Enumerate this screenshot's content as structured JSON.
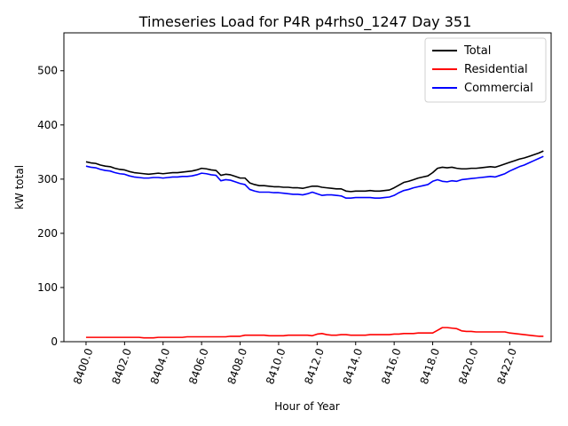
{
  "chart_data": {
    "type": "line",
    "title": "Timeseries Load for P4R p4rhs0_1247  Day 351",
    "xlabel": "Hour of Year",
    "ylabel": "kW total",
    "xlim": [
      8398.85,
      8424.15
    ],
    "ylim": [
      0,
      570
    ],
    "xticks": [
      8400,
      8402,
      8404,
      8406,
      8408,
      8410,
      8412,
      8414,
      8416,
      8418,
      8420,
      8422
    ],
    "xtick_labels": [
      "8400.0",
      "8402.0",
      "8404.0",
      "8406.0",
      "8408.0",
      "8410.0",
      "8412.0",
      "8414.0",
      "8416.0",
      "8418.0",
      "8420.0",
      "8422.0"
    ],
    "yticks": [
      0,
      100,
      200,
      300,
      400,
      500
    ],
    "ytick_labels": [
      "0",
      "100",
      "200",
      "300",
      "400",
      "500"
    ],
    "grid": false,
    "legend_position": "top-right",
    "x": [
      8400.0,
      8400.25,
      8400.5,
      8400.75,
      8401.0,
      8401.25,
      8401.5,
      8401.75,
      8402.0,
      8402.25,
      8402.5,
      8402.75,
      8403.0,
      8403.25,
      8403.5,
      8403.75,
      8404.0,
      8404.25,
      8404.5,
      8404.75,
      8405.0,
      8405.25,
      8405.5,
      8405.75,
      8406.0,
      8406.25,
      8406.5,
      8406.75,
      8407.0,
      8407.25,
      8407.5,
      8407.75,
      8408.0,
      8408.25,
      8408.5,
      8408.75,
      8409.0,
      8409.25,
      8409.5,
      8409.75,
      8410.0,
      8410.25,
      8410.5,
      8410.75,
      8411.0,
      8411.25,
      8411.5,
      8411.75,
      8412.0,
      8412.25,
      8412.5,
      8412.75,
      8413.0,
      8413.25,
      8413.5,
      8413.75,
      8414.0,
      8414.25,
      8414.5,
      8414.75,
      8415.0,
      8415.25,
      8415.5,
      8415.75,
      8416.0,
      8416.25,
      8416.5,
      8416.75,
      8417.0,
      8417.25,
      8417.5,
      8417.75,
      8418.0,
      8418.25,
      8418.5,
      8418.75,
      8419.0,
      8419.25,
      8419.5,
      8419.75,
      8420.0,
      8420.25,
      8420.5,
      8420.75,
      8421.0,
      8421.25,
      8421.5,
      8421.75,
      8422.0,
      8422.25,
      8422.5,
      8422.75,
      8423.0,
      8423.25,
      8423.5,
      8423.75
    ],
    "series": [
      {
        "name": "Total",
        "color": "#000000",
        "values": [
          332,
          330,
          329,
          326,
          324,
          323,
          320,
          318,
          317,
          314,
          312,
          311,
          310,
          309,
          310,
          311,
          310,
          311,
          312,
          312,
          313,
          314,
          315,
          317,
          320,
          319,
          317,
          316,
          307,
          309,
          308,
          305,
          302,
          302,
          293,
          290,
          288,
          288,
          287,
          286,
          286,
          285,
          285,
          284,
          284,
          283,
          285,
          287,
          287,
          285,
          284,
          283,
          282,
          282,
          278,
          277,
          278,
          278,
          278,
          279,
          278,
          278,
          279,
          280,
          284,
          289,
          294,
          296,
          299,
          302,
          304,
          306,
          312,
          320,
          322,
          321,
          322,
          320,
          319,
          319,
          320,
          320,
          321,
          322,
          323,
          322,
          325,
          328,
          331,
          334,
          337,
          339,
          342,
          345,
          348,
          352
        ]
      },
      {
        "name": "Residential",
        "color": "#ff0000",
        "values": [
          8,
          8,
          8,
          8,
          8,
          8,
          8,
          8,
          8,
          8,
          8,
          8,
          7,
          7,
          7,
          8,
          8,
          8,
          8,
          8,
          8,
          9,
          9,
          9,
          9,
          9,
          9,
          9,
          9,
          9,
          10,
          10,
          10,
          12,
          12,
          12,
          12,
          12,
          11,
          11,
          11,
          11,
          12,
          12,
          12,
          12,
          12,
          11,
          14,
          15,
          13,
          12,
          12,
          13,
          13,
          12,
          12,
          12,
          12,
          13,
          13,
          13,
          13,
          13,
          14,
          14,
          15,
          15,
          15,
          16,
          16,
          16,
          16,
          21,
          26,
          26,
          25,
          24,
          20,
          19,
          19,
          18,
          18,
          18,
          18,
          18,
          18,
          18,
          16,
          15,
          14,
          13,
          12,
          11,
          10,
          10
        ]
      },
      {
        "name": "Commercial",
        "color": "#0000ff",
        "values": [
          324,
          322,
          321,
          318,
          316,
          315,
          312,
          310,
          309,
          306,
          304,
          303,
          302,
          302,
          303,
          303,
          302,
          303,
          304,
          304,
          305,
          305,
          306,
          308,
          311,
          310,
          308,
          307,
          297,
          299,
          298,
          295,
          292,
          290,
          281,
          278,
          276,
          276,
          276,
          275,
          275,
          274,
          273,
          272,
          272,
          271,
          273,
          276,
          273,
          270,
          271,
          271,
          270,
          269,
          265,
          265,
          266,
          266,
          266,
          266,
          265,
          265,
          266,
          267,
          270,
          275,
          279,
          281,
          284,
          286,
          288,
          290,
          296,
          299,
          296,
          295,
          297,
          296,
          299,
          300,
          301,
          302,
          303,
          304,
          305,
          304,
          307,
          310,
          315,
          319,
          323,
          326,
          330,
          334,
          338,
          342
        ]
      }
    ]
  }
}
